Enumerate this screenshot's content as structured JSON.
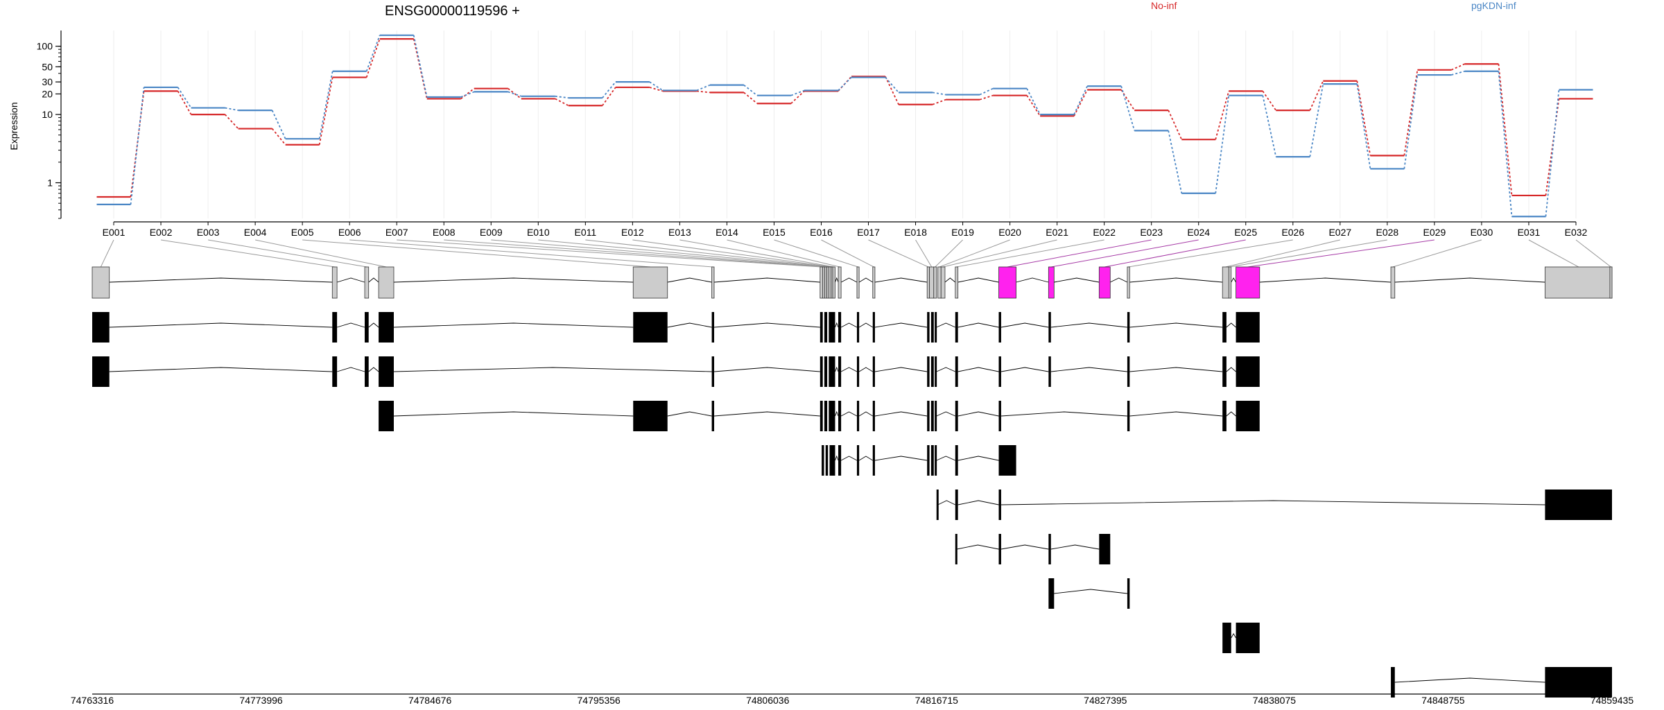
{
  "chart_data": {
    "type": "line",
    "title": "ENSG00000119596 +",
    "ylabel": "Expression",
    "yscale": "log",
    "yticks": [
      1,
      10,
      20,
      30,
      50,
      100
    ],
    "ylim": [
      0.3,
      170
    ],
    "grid": "vertical, light",
    "legend_position": "top",
    "series": [
      {
        "name": "No-inf",
        "color": "#d62728",
        "values": [
          0.62,
          22,
          10,
          6.2,
          3.6,
          35,
          128,
          17,
          24,
          17,
          13.5,
          25,
          22,
          21,
          14.5,
          22,
          36,
          14,
          16.5,
          19,
          9.5,
          23,
          11.5,
          4.3,
          22,
          11.5,
          31,
          2.5,
          45,
          55,
          0.65,
          17
        ]
      },
      {
        "name": "pgKDN-inf",
        "color": "#4a86c5",
        "values": [
          0.48,
          25,
          12.5,
          11.5,
          4.4,
          43,
          145,
          18,
          21.5,
          18.5,
          17.5,
          30,
          22.5,
          27,
          19,
          22.5,
          35,
          21,
          19.5,
          24,
          10,
          26,
          5.8,
          0.7,
          19,
          2.4,
          28,
          1.6,
          38,
          43,
          0.32,
          23
        ]
      }
    ],
    "exon_labels": [
      "E001",
      "E002",
      "E003",
      "E004",
      "E005",
      "E006",
      "E007",
      "E008",
      "E009",
      "E010",
      "E011",
      "E012",
      "E013",
      "E014",
      "E015",
      "E016",
      "E017",
      "E018",
      "E019",
      "E020",
      "E021",
      "E022",
      "E023",
      "E024",
      "E025",
      "E026",
      "E027",
      "E028",
      "E029",
      "E030",
      "E031",
      "E032"
    ],
    "genomic_axis": {
      "range": [
        74763316,
        74859435
      ],
      "ticks": [
        "74763316",
        "74773996",
        "74784676",
        "74795356",
        "74806036",
        "74816715",
        "74827395",
        "74838075",
        "74848755",
        "74859435"
      ]
    },
    "exons": [
      {
        "id": "E001",
        "start": 74763316,
        "end": 74764400,
        "highlight": false
      },
      {
        "id": "E002",
        "start": 74778500,
        "end": 74778800,
        "highlight": false
      },
      {
        "id": "E003",
        "start": 74780550,
        "end": 74780800,
        "highlight": false
      },
      {
        "id": "E004",
        "start": 74781430,
        "end": 74782390,
        "highlight": false
      },
      {
        "id": "E005",
        "start": 74797530,
        "end": 74799700,
        "highlight": false
      },
      {
        "id": "E006",
        "start": 74802500,
        "end": 74802650,
        "highlight": false
      },
      {
        "id": "E007",
        "start": 74809350,
        "end": 74809520,
        "highlight": false
      },
      {
        "id": "E008",
        "start": 74809520,
        "end": 74809650,
        "highlight": false
      },
      {
        "id": "E009",
        "start": 74809650,
        "end": 74809780,
        "highlight": false
      },
      {
        "id": "E010",
        "start": 74809780,
        "end": 74809900,
        "highlight": false
      },
      {
        "id": "E011",
        "start": 74809900,
        "end": 74810050,
        "highlight": false
      },
      {
        "id": "E012",
        "start": 74810050,
        "end": 74810150,
        "highlight": false
      },
      {
        "id": "E013",
        "start": 74810150,
        "end": 74810300,
        "highlight": false
      },
      {
        "id": "E014",
        "start": 74810500,
        "end": 74810680,
        "highlight": false
      },
      {
        "id": "E015",
        "start": 74811680,
        "end": 74811820,
        "highlight": false
      },
      {
        "id": "E016",
        "start": 74812680,
        "end": 74812820,
        "highlight": false
      },
      {
        "id": "E017",
        "start": 74816120,
        "end": 74816270,
        "highlight": false
      },
      {
        "id": "E018",
        "start": 74816270,
        "end": 74816540,
        "highlight": false
      },
      {
        "id": "E019",
        "start": 74816540,
        "end": 74816715,
        "highlight": false
      },
      {
        "id": "E020",
        "start": 74816800,
        "end": 74817000,
        "highlight": false
      },
      {
        "id": "E021",
        "start": 74817000,
        "end": 74817250,
        "highlight": false
      },
      {
        "id": "E022",
        "start": 74817900,
        "end": 74818070,
        "highlight": false
      },
      {
        "id": "E023",
        "start": 74820650,
        "end": 74821750,
        "highlight": true
      },
      {
        "id": "E024",
        "start": 74823800,
        "end": 74824150,
        "highlight": true
      },
      {
        "id": "E025",
        "start": 74827000,
        "end": 74827700,
        "highlight": true
      },
      {
        "id": "E026",
        "start": 74828780,
        "end": 74828930,
        "highlight": false
      },
      {
        "id": "E027",
        "start": 74834800,
        "end": 74835200,
        "highlight": false
      },
      {
        "id": "E028",
        "start": 74835200,
        "end": 74835350,
        "highlight": false
      },
      {
        "id": "E029",
        "start": 74835650,
        "end": 74837150,
        "highlight": true
      },
      {
        "id": "E030",
        "start": 74845450,
        "end": 74845700,
        "highlight": false
      },
      {
        "id": "E031",
        "start": 74855200,
        "end": 74859435,
        "highlight": false
      },
      {
        "id": "E032",
        "start": 74859300,
        "end": 74859435,
        "highlight": false
      }
    ],
    "transcripts": [
      {
        "blocks": [
          [
            74763316,
            74764400
          ],
          [
            74778500,
            74778800
          ],
          [
            74780550,
            74780800
          ],
          [
            74781430,
            74782390
          ],
          [
            74797530,
            74799700
          ],
          [
            74802500,
            74802650
          ],
          [
            74809350,
            74809520
          ],
          [
            74809620,
            74809800
          ],
          [
            74809900,
            74810300
          ],
          [
            74810500,
            74810680
          ],
          [
            74811680,
            74811820
          ],
          [
            74812680,
            74812820
          ],
          [
            74816120,
            74816270
          ],
          [
            74816370,
            74816540
          ],
          [
            74816600,
            74816715
          ],
          [
            74817900,
            74818070
          ],
          [
            74820650,
            74820800
          ],
          [
            74823800,
            74823950
          ],
          [
            74828780,
            74828930
          ],
          [
            74834800,
            74835050
          ],
          [
            74835650,
            74837150
          ]
        ]
      },
      {
        "blocks": [
          [
            74763316,
            74764400
          ],
          [
            74778500,
            74778800
          ],
          [
            74780550,
            74780800
          ],
          [
            74781430,
            74782390
          ],
          [
            74802500,
            74802650
          ],
          [
            74809350,
            74809520
          ],
          [
            74809620,
            74809800
          ],
          [
            74809900,
            74810300
          ],
          [
            74810500,
            74810680
          ],
          [
            74811680,
            74811820
          ],
          [
            74812680,
            74812820
          ],
          [
            74816120,
            74816270
          ],
          [
            74816370,
            74816540
          ],
          [
            74816600,
            74816715
          ],
          [
            74817900,
            74818070
          ],
          [
            74820650,
            74820800
          ],
          [
            74823800,
            74823950
          ],
          [
            74828780,
            74828930
          ],
          [
            74834800,
            74835050
          ],
          [
            74835650,
            74837150
          ]
        ]
      },
      {
        "blocks": [
          [
            74781430,
            74782390
          ],
          [
            74797530,
            74799700
          ],
          [
            74802500,
            74802650
          ],
          [
            74809350,
            74809520
          ],
          [
            74809620,
            74809800
          ],
          [
            74809900,
            74810300
          ],
          [
            74810500,
            74810680
          ],
          [
            74811680,
            74811820
          ],
          [
            74812680,
            74812820
          ],
          [
            74816120,
            74816270
          ],
          [
            74816370,
            74816540
          ],
          [
            74816600,
            74816715
          ],
          [
            74817900,
            74818070
          ],
          [
            74820650,
            74820800
          ],
          [
            74828780,
            74828930
          ],
          [
            74834800,
            74835050
          ],
          [
            74835650,
            74837150
          ]
        ]
      },
      {
        "blocks": [
          [
            74809450,
            74809600
          ],
          [
            74809700,
            74809850
          ],
          [
            74809950,
            74810300
          ],
          [
            74810500,
            74810680
          ],
          [
            74811680,
            74811820
          ],
          [
            74812680,
            74812820
          ],
          [
            74816120,
            74816270
          ],
          [
            74816370,
            74816540
          ],
          [
            74816600,
            74816715
          ],
          [
            74817900,
            74818070
          ],
          [
            74820650,
            74821750
          ]
        ]
      },
      {
        "blocks": [
          [
            74816715,
            74816800
          ],
          [
            74817900,
            74818070
          ],
          [
            74820650,
            74820800
          ],
          [
            74855200,
            74859435
          ]
        ]
      },
      {
        "blocks": [
          [
            74817900,
            74818000
          ],
          [
            74820650,
            74820800
          ],
          [
            74823800,
            74823950
          ],
          [
            74827000,
            74827700
          ]
        ]
      },
      {
        "blocks": [
          [
            74823800,
            74824150
          ],
          [
            74828780,
            74828930
          ]
        ]
      },
      {
        "blocks": [
          [
            74834800,
            74835350
          ],
          [
            74835650,
            74837150
          ]
        ]
      },
      {
        "blocks": [
          [
            74845450,
            74845700
          ],
          [
            74855200,
            74859435
          ]
        ]
      }
    ]
  }
}
